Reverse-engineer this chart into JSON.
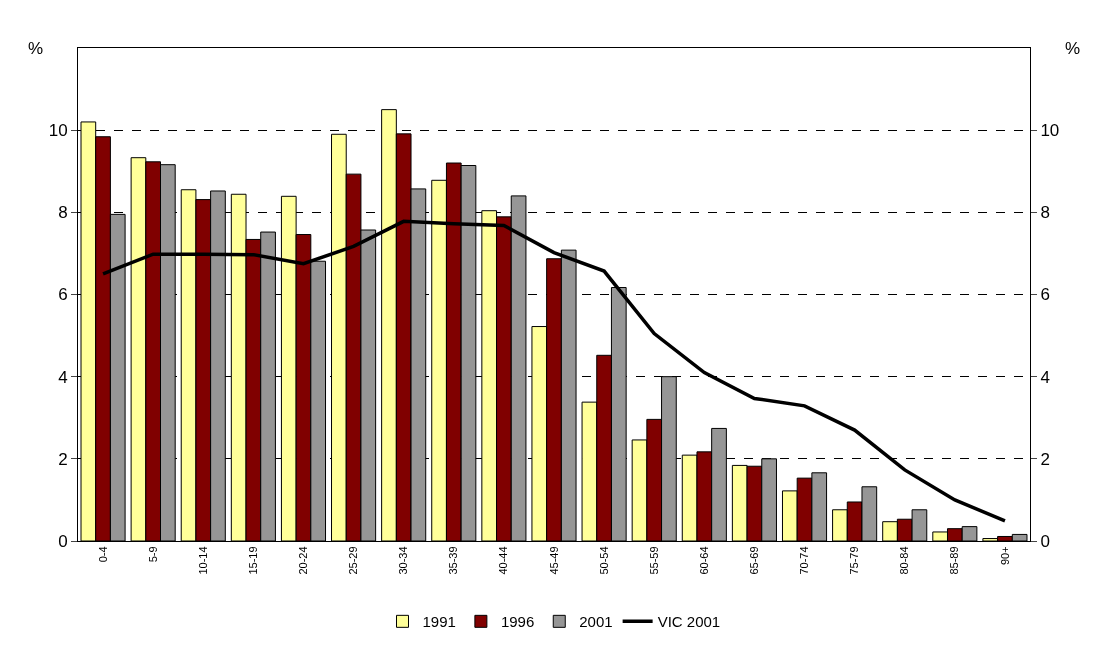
{
  "chart_data": {
    "type": "bar",
    "categories": [
      "0-4",
      "5-9",
      "10-14",
      "15-19",
      "20-24",
      "25-29",
      "30-34",
      "35-39",
      "40-44",
      "45-49",
      "50-54",
      "55-59",
      "60-64",
      "65-69",
      "70-74",
      "75-79",
      "80-84",
      "85-89",
      "90+"
    ],
    "series": [
      {
        "name": "1991",
        "color": "#ffff99",
        "values": [
          10.2,
          9.33,
          8.55,
          8.44,
          8.39,
          9.9,
          10.5,
          8.78,
          8.04,
          5.22,
          3.38,
          2.46,
          2.09,
          1.84,
          1.22,
          0.76,
          0.47,
          0.22,
          0.06
        ]
      },
      {
        "name": "1996",
        "color": "#800000",
        "values": [
          9.84,
          9.23,
          8.31,
          7.34,
          7.46,
          8.93,
          9.91,
          9.2,
          7.89,
          6.87,
          4.52,
          2.96,
          2.17,
          1.82,
          1.53,
          0.95,
          0.53,
          0.3,
          0.11
        ]
      },
      {
        "name": "2001",
        "color": "#969696",
        "values": [
          7.95,
          9.16,
          8.52,
          7.52,
          6.81,
          7.57,
          8.57,
          9.14,
          8.4,
          7.08,
          6.17,
          4.0,
          2.74,
          2.0,
          1.66,
          1.32,
          0.76,
          0.35,
          0.16
        ]
      },
      {
        "name": "VIC 2001",
        "type": "line",
        "color": "#000000",
        "values": [
          6.5,
          6.98,
          6.98,
          6.97,
          6.75,
          7.17,
          7.78,
          7.72,
          7.68,
          7.02,
          6.57,
          5.05,
          4.1,
          3.47,
          3.29,
          2.7,
          1.73,
          1.0,
          0.49
        ]
      }
    ],
    "ylabel": "%",
    "y2label": "%",
    "ylim": [
      0,
      12
    ],
    "yticks": [
      0,
      2,
      4,
      6,
      8,
      10
    ],
    "y2lim": [
      0,
      12
    ],
    "y2ticks": [
      0,
      2,
      4,
      6,
      8,
      10
    ],
    "grid": "y",
    "legend": "bottom",
    "marker": "none",
    "line_style": "solid"
  }
}
